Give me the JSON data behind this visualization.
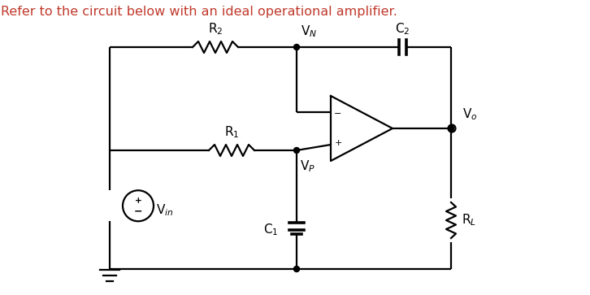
{
  "title": "Refer to the circuit below with an ideal operational amplifier.",
  "title_color": "#c0392b",
  "bg_color": "#ffffff",
  "line_color": "#000000",
  "title_fontsize": 11.5,
  "label_fontsize": 11
}
